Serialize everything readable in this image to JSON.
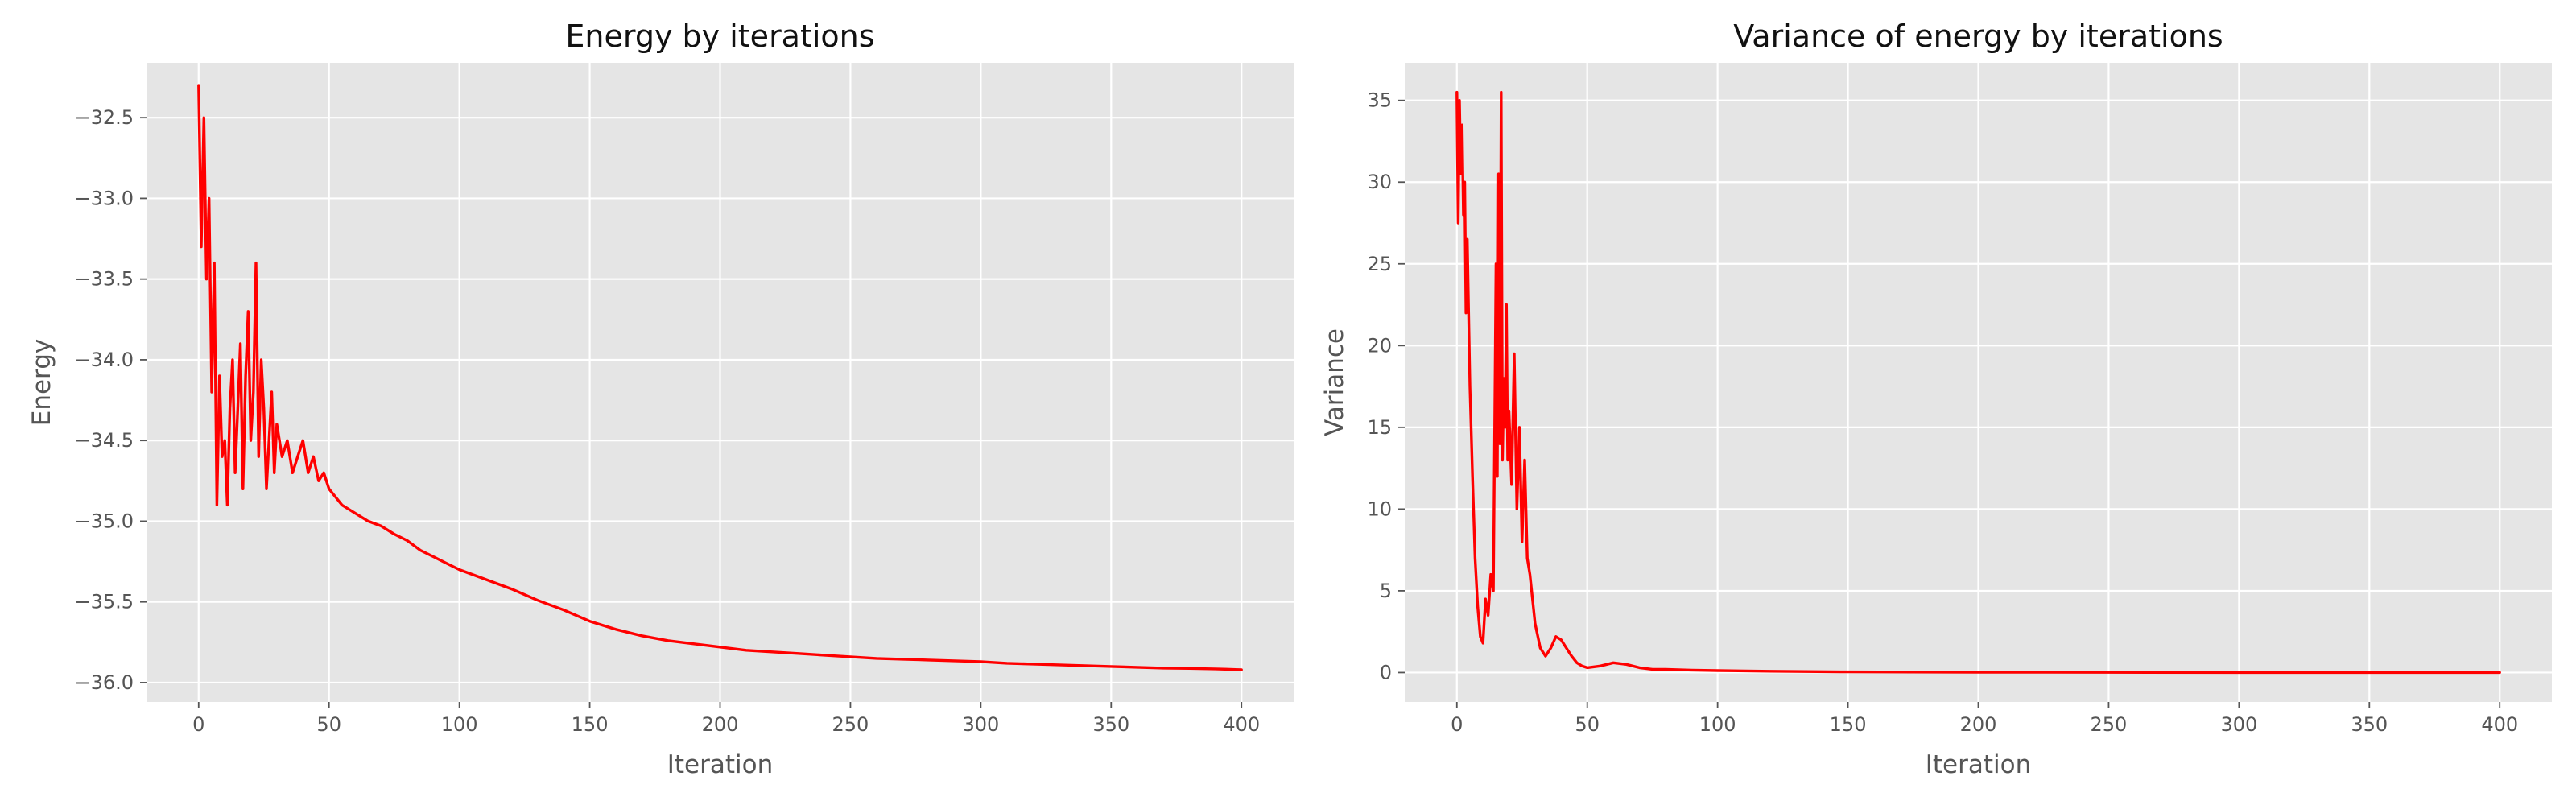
{
  "chart_data": [
    {
      "type": "line",
      "title": "Energy by iterations",
      "xlabel": "Iteration",
      "ylabel": "Energy",
      "xlim": [
        -20,
        420
      ],
      "ylim": [
        -36.12,
        -32.16
      ],
      "xticks": [
        0,
        50,
        100,
        150,
        200,
        250,
        300,
        350,
        400
      ],
      "yticks": [
        -36.0,
        -35.5,
        -35.0,
        -34.5,
        -34.0,
        -33.5,
        -33.0,
        -32.5
      ],
      "ytick_labels": [
        "−36.0",
        "−35.5",
        "−35.0",
        "−34.5",
        "−34.0",
        "−33.5",
        "−33.0",
        "−32.5"
      ],
      "grid": true,
      "color": "#ff0000",
      "series": [
        {
          "x": [
            0,
            1,
            2,
            3,
            4,
            5,
            6,
            7,
            8,
            9,
            10,
            11,
            12,
            13,
            14,
            15,
            16,
            17,
            18,
            19,
            20,
            21,
            22,
            23,
            24,
            25,
            26,
            27,
            28,
            29,
            30,
            32,
            34,
            36,
            38,
            40,
            42,
            44,
            46,
            48,
            50,
            55,
            60,
            65,
            70,
            75,
            80,
            85,
            90,
            95,
            100,
            110,
            120,
            130,
            140,
            150,
            160,
            170,
            180,
            190,
            200,
            210,
            220,
            230,
            240,
            250,
            260,
            270,
            280,
            290,
            300,
            310,
            320,
            330,
            340,
            350,
            360,
            370,
            380,
            390,
            400
          ],
          "y": [
            -32.3,
            -33.3,
            -32.5,
            -33.5,
            -33.0,
            -34.2,
            -33.4,
            -34.9,
            -34.1,
            -34.6,
            -34.5,
            -34.9,
            -34.3,
            -34.0,
            -34.7,
            -34.3,
            -33.9,
            -34.8,
            -34.1,
            -33.7,
            -34.5,
            -34.2,
            -33.4,
            -34.6,
            -34.0,
            -34.3,
            -34.8,
            -34.5,
            -34.2,
            -34.7,
            -34.4,
            -34.6,
            -34.5,
            -34.7,
            -34.6,
            -34.5,
            -34.7,
            -34.6,
            -34.75,
            -34.7,
            -34.8,
            -34.9,
            -34.95,
            -35.0,
            -35.03,
            -35.08,
            -35.12,
            -35.18,
            -35.22,
            -35.26,
            -35.3,
            -35.36,
            -35.42,
            -35.49,
            -35.55,
            -35.62,
            -35.67,
            -35.71,
            -35.74,
            -35.76,
            -35.78,
            -35.8,
            -35.81,
            -35.82,
            -35.83,
            -35.84,
            -35.85,
            -35.855,
            -35.86,
            -35.865,
            -35.87,
            -35.88,
            -35.885,
            -35.89,
            -35.895,
            -35.9,
            -35.905,
            -35.91,
            -35.912,
            -35.915,
            -35.92
          ]
        }
      ]
    },
    {
      "type": "line",
      "title": "Variance of energy by iterations",
      "xlabel": "Iteration",
      "ylabel": "Variance",
      "xlim": [
        -20,
        420
      ],
      "ylim": [
        -1.8,
        37.3
      ],
      "xticks": [
        0,
        50,
        100,
        150,
        200,
        250,
        300,
        350,
        400
      ],
      "yticks": [
        0,
        5,
        10,
        15,
        20,
        25,
        30,
        35
      ],
      "ytick_labels": [
        "0",
        "5",
        "10",
        "15",
        "20",
        "25",
        "30",
        "35"
      ],
      "grid": true,
      "color": "#ff0000",
      "series": [
        {
          "x": [
            0,
            0.5,
            1,
            1.5,
            2,
            2.5,
            3,
            3.5,
            4,
            5,
            6,
            7,
            8,
            9,
            10,
            11,
            12,
            13,
            14,
            15,
            15.5,
            16,
            16.5,
            17,
            17.5,
            18,
            18.5,
            19,
            19.5,
            20,
            21,
            22,
            23,
            24,
            25,
            26,
            27,
            28,
            30,
            32,
            34,
            36,
            38,
            40,
            42,
            44,
            46,
            48,
            50,
            55,
            60,
            65,
            70,
            75,
            80,
            90,
            100,
            120,
            150,
            200,
            250,
            300,
            350,
            400
          ],
          "y": [
            35.5,
            27.5,
            35.0,
            30.5,
            33.5,
            28.0,
            30.0,
            22.0,
            26.5,
            17.5,
            12.0,
            7.0,
            4.0,
            2.2,
            1.8,
            4.5,
            3.5,
            6.0,
            5.0,
            25.0,
            12.0,
            30.5,
            14.0,
            35.5,
            13.0,
            18.0,
            15.0,
            22.5,
            13.0,
            16.0,
            11.5,
            19.5,
            10.0,
            15.0,
            8.0,
            13.0,
            7.0,
            6.0,
            3.0,
            1.5,
            1.0,
            1.5,
            2.2,
            2.0,
            1.5,
            1.0,
            0.6,
            0.4,
            0.3,
            0.4,
            0.6,
            0.5,
            0.3,
            0.2,
            0.2,
            0.15,
            0.12,
            0.08,
            0.04,
            0.02,
            0.01,
            0.0,
            0.0,
            0.0
          ]
        }
      ]
    }
  ]
}
